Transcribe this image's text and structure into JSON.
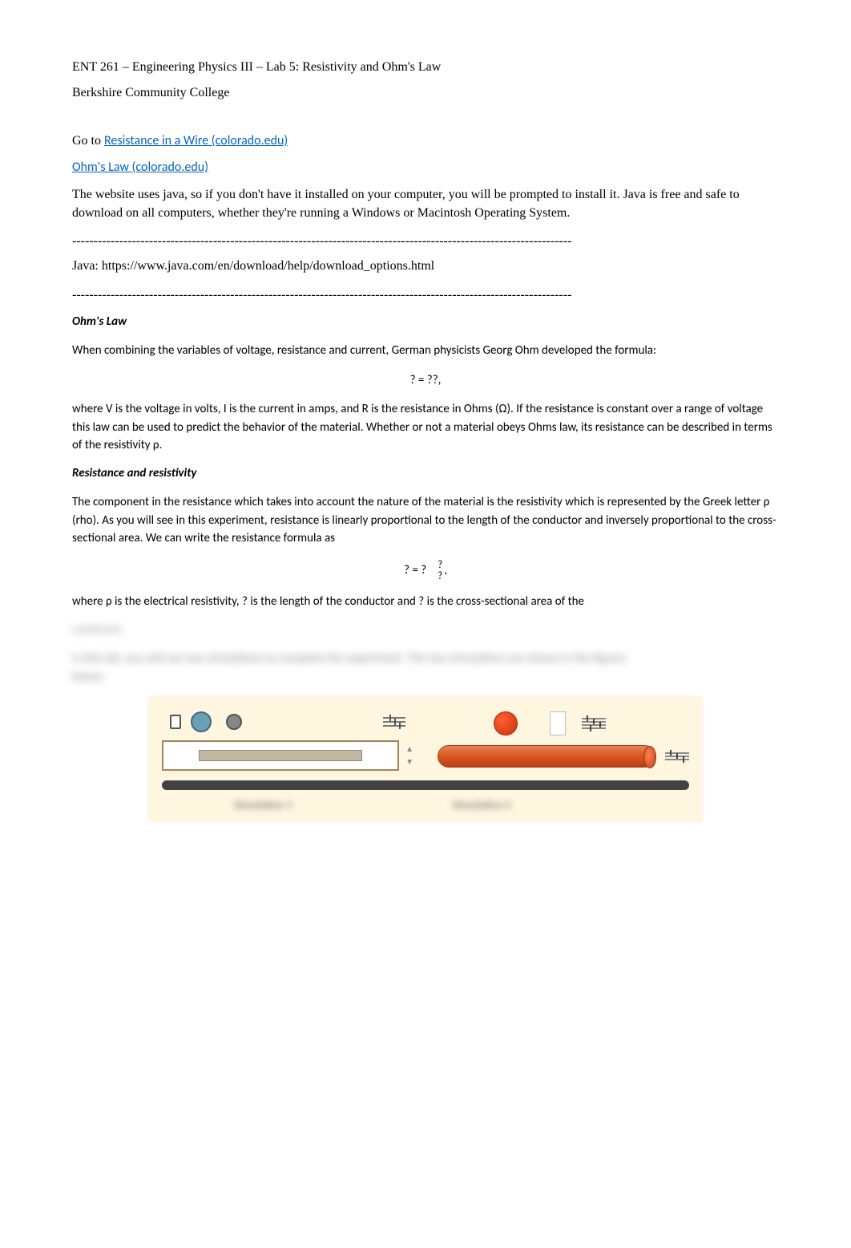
{
  "header": {
    "title": "ENT 261 – Engineering Physics III – Lab 5: Resistivity and Ohm's Law",
    "college": "Berkshire Community College"
  },
  "links": {
    "goto_prefix": "Go to ",
    "link1_text": "Resistance in a Wire (colorado.edu)",
    "link2_text": "Ohm's Law (colorado.edu)"
  },
  "java_para": "The website uses java, so if you don't have it installed on your computer, you will be prompted to install it. Java is free and safe to download on all computers, whether they're running a Windows or Macintosh Operating System.",
  "divider": "---------------------------------------------------------------------------------------------------------------------",
  "java_link": "Java: https://www.java.com/en/download/help/download_options.html",
  "ohms_law": {
    "title": "Ohm's Law",
    "intro": "When combining the variables of voltage, resistance and current, German physicists Georg Ohm developed the formula:",
    "formula": "? = ??,",
    "explanation": "where V is the voltage in volts, I is the current in amps, and R is the resistance in Ohms (Ω). If the resistance is constant over a range of voltage this law can be used to predict the behavior of the material. Whether or not a material obeys Ohms law, its resistance can be described in terms of the resistivity ρ."
  },
  "resistance": {
    "title": "Resistance and resistivity",
    "intro": "The component in the resistance which takes into account the nature of the material is the resistivity which is represented by the Greek letter ρ (rho). As you will see in this experiment, resistance is linearly proportional to the length of the conductor and inversely proportional to the cross-sectional area. We can write the resistance formula as",
    "formula_lhs": "? = ?",
    "formula_num": "?",
    "formula_den": "?",
    "formula_comma": ",",
    "explanation": "where ρ is the electrical resistivity, ? is the length of the conductor and ?  is the cross-sectional area of the"
  },
  "blurred": {
    "word1": "conductor.",
    "line1": "In this lab, you will use two simulations to complete the experiment.  The two simulations are shown in the figures",
    "line2": "below.",
    "sim_label1": "Simulation 1",
    "sim_label2": "Simulation 2"
  },
  "styling": {
    "page_bg": "#ffffff",
    "text_color": "#000000",
    "link_color": "#0563c1",
    "sim_bg": "#fff6e0",
    "wire_color": "#d85820",
    "body_font_size": 16,
    "calibri_font_size": 15
  }
}
